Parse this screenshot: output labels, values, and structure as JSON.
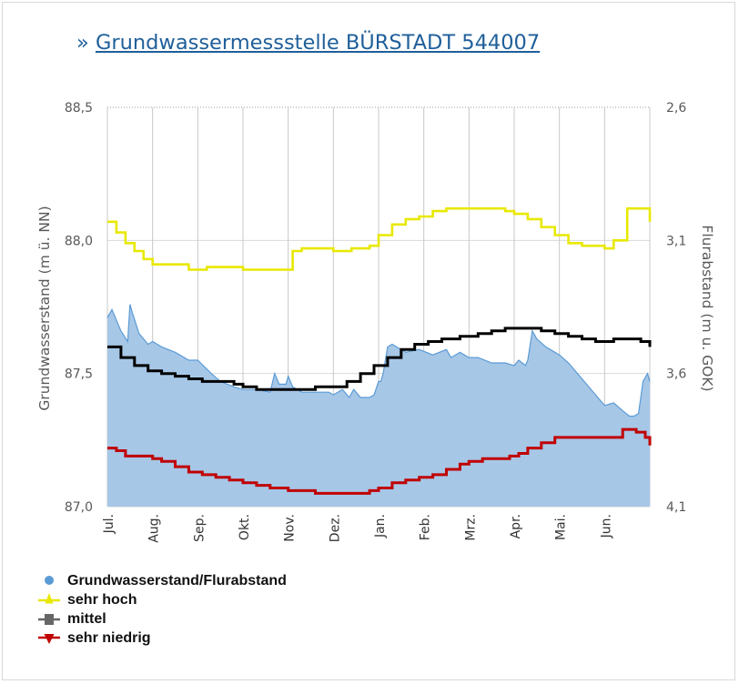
{
  "header": {
    "prefix": "»",
    "title": "Grundwassermessstelle BÜRSTADT 544007"
  },
  "colors": {
    "measured": "#5b9bd5",
    "measured_fill": "#a7c7e7",
    "high": "#e8e800",
    "mean": "#000000",
    "low": "#c00000"
  },
  "chart_data": {
    "type": "line",
    "ylabel": "Grundwasserstand (m ü. NN)",
    "y2label": "Flurabstand (m u. GOK)",
    "ylim": [
      87.0,
      88.5
    ],
    "y2lim": [
      4.1,
      2.6
    ],
    "yticks": [
      "88,5",
      "88,0",
      "87,5",
      "87,0"
    ],
    "y2ticks": [
      "2,6",
      "3,1",
      "3,6",
      "4,1"
    ],
    "xlim": [
      0,
      12
    ],
    "categories": [
      "Jul.",
      "Aug.",
      "Sep.",
      "Okt.",
      "Nov.",
      "Dez.",
      "Jan.",
      "Feb.",
      "Mrz.",
      "Apr.",
      "Mai.",
      "Jun."
    ],
    "grid": true,
    "legend_position": "bottom-left",
    "series": [
      {
        "name": "Grundwasserstand/Flurabstand",
        "style": "area",
        "x": [
          0,
          0.1,
          0.3,
          0.45,
          0.5,
          0.55,
          0.7,
          0.9,
          1.0,
          1.2,
          1.5,
          1.8,
          2.0,
          2.3,
          2.5,
          2.8,
          3.0,
          3.3,
          3.6,
          3.7,
          3.8,
          3.95,
          4.0,
          4.1,
          4.3,
          4.6,
          4.9,
          5.0,
          5.2,
          5.35,
          5.45,
          5.6,
          5.8,
          5.9,
          6.0,
          6.05,
          6.1,
          6.2,
          6.3,
          6.6,
          6.9,
          7.2,
          7.5,
          7.6,
          7.8,
          8.0,
          8.2,
          8.5,
          8.8,
          9.0,
          9.1,
          9.25,
          9.3,
          9.4,
          9.5,
          9.7,
          9.9,
          10.0,
          10.2,
          10.4,
          10.6,
          10.8,
          11.0,
          11.2,
          11.4,
          11.55,
          11.65,
          11.75,
          11.85,
          11.95,
          12.0
        ],
        "values": [
          87.71,
          87.74,
          87.66,
          87.62,
          87.76,
          87.73,
          87.65,
          87.61,
          87.62,
          87.6,
          87.58,
          87.55,
          87.55,
          87.5,
          87.47,
          87.45,
          87.44,
          87.44,
          87.43,
          87.5,
          87.46,
          87.46,
          87.49,
          87.45,
          87.43,
          87.43,
          87.43,
          87.42,
          87.44,
          87.41,
          87.44,
          87.41,
          87.41,
          87.42,
          87.47,
          87.47,
          87.5,
          87.6,
          87.61,
          87.58,
          87.59,
          87.57,
          87.59,
          87.56,
          87.58,
          87.56,
          87.56,
          87.54,
          87.54,
          87.53,
          87.55,
          87.53,
          87.55,
          87.66,
          87.63,
          87.6,
          87.58,
          87.57,
          87.54,
          87.5,
          87.46,
          87.42,
          87.38,
          87.39,
          87.36,
          87.34,
          87.34,
          87.35,
          87.47,
          87.5,
          87.47
        ]
      },
      {
        "name": "sehr hoch",
        "style": "step",
        "x": [
          0,
          0.2,
          0.4,
          0.6,
          0.8,
          1.0,
          1.5,
          1.8,
          2.2,
          2.5,
          3.0,
          3.5,
          4.0,
          4.1,
          4.3,
          4.6,
          5.0,
          5.4,
          5.8,
          6.0,
          6.3,
          6.6,
          6.9,
          7.2,
          7.5,
          8.0,
          8.5,
          8.8,
          9.0,
          9.3,
          9.6,
          9.9,
          10.2,
          10.5,
          10.8,
          11.0,
          11.2,
          11.5,
          11.8,
          12.0
        ],
        "values": [
          88.07,
          88.03,
          87.99,
          87.96,
          87.93,
          87.91,
          87.91,
          87.89,
          87.9,
          87.9,
          87.89,
          87.89,
          87.89,
          87.96,
          87.97,
          87.97,
          87.96,
          87.97,
          87.98,
          88.02,
          88.06,
          88.08,
          88.09,
          88.11,
          88.12,
          88.12,
          88.12,
          88.11,
          88.1,
          88.08,
          88.05,
          88.02,
          87.99,
          87.98,
          87.98,
          87.97,
          88.0,
          88.12,
          88.12,
          88.07
        ]
      },
      {
        "name": "mittel",
        "style": "step",
        "x": [
          0,
          0.3,
          0.6,
          0.9,
          1.2,
          1.5,
          1.8,
          2.1,
          2.5,
          2.8,
          3.0,
          3.3,
          3.6,
          4.0,
          4.3,
          4.6,
          5.0,
          5.3,
          5.6,
          5.9,
          6.2,
          6.5,
          6.8,
          7.1,
          7.4,
          7.8,
          8.2,
          8.5,
          8.8,
          9.0,
          9.3,
          9.6,
          9.9,
          10.2,
          10.5,
          10.8,
          11.2,
          11.5,
          11.8,
          12.0
        ],
        "values": [
          87.6,
          87.56,
          87.53,
          87.51,
          87.5,
          87.49,
          87.48,
          87.47,
          87.47,
          87.46,
          87.45,
          87.44,
          87.44,
          87.44,
          87.44,
          87.45,
          87.45,
          87.47,
          87.5,
          87.53,
          87.56,
          87.59,
          87.61,
          87.62,
          87.63,
          87.64,
          87.65,
          87.66,
          87.67,
          87.67,
          87.67,
          87.66,
          87.65,
          87.64,
          87.63,
          87.62,
          87.63,
          87.63,
          87.62,
          87.6
        ]
      },
      {
        "name": "sehr niedrig",
        "style": "step",
        "x": [
          0,
          0.2,
          0.4,
          0.8,
          1.0,
          1.2,
          1.5,
          1.8,
          2.1,
          2.4,
          2.7,
          3.0,
          3.3,
          3.6,
          4.0,
          4.3,
          4.6,
          5.0,
          5.4,
          5.8,
          6.0,
          6.3,
          6.6,
          6.9,
          7.2,
          7.5,
          7.8,
          8.0,
          8.3,
          8.6,
          8.9,
          9.1,
          9.3,
          9.6,
          9.9,
          10.2,
          10.6,
          11.0,
          11.4,
          11.7,
          11.9,
          12.0
        ],
        "values": [
          87.22,
          87.21,
          87.19,
          87.19,
          87.18,
          87.17,
          87.15,
          87.13,
          87.12,
          87.11,
          87.1,
          87.09,
          87.08,
          87.07,
          87.06,
          87.06,
          87.05,
          87.05,
          87.05,
          87.06,
          87.07,
          87.09,
          87.1,
          87.11,
          87.12,
          87.14,
          87.16,
          87.17,
          87.18,
          87.18,
          87.19,
          87.2,
          87.22,
          87.24,
          87.26,
          87.26,
          87.26,
          87.26,
          87.29,
          87.28,
          87.26,
          87.23
        ]
      }
    ]
  }
}
